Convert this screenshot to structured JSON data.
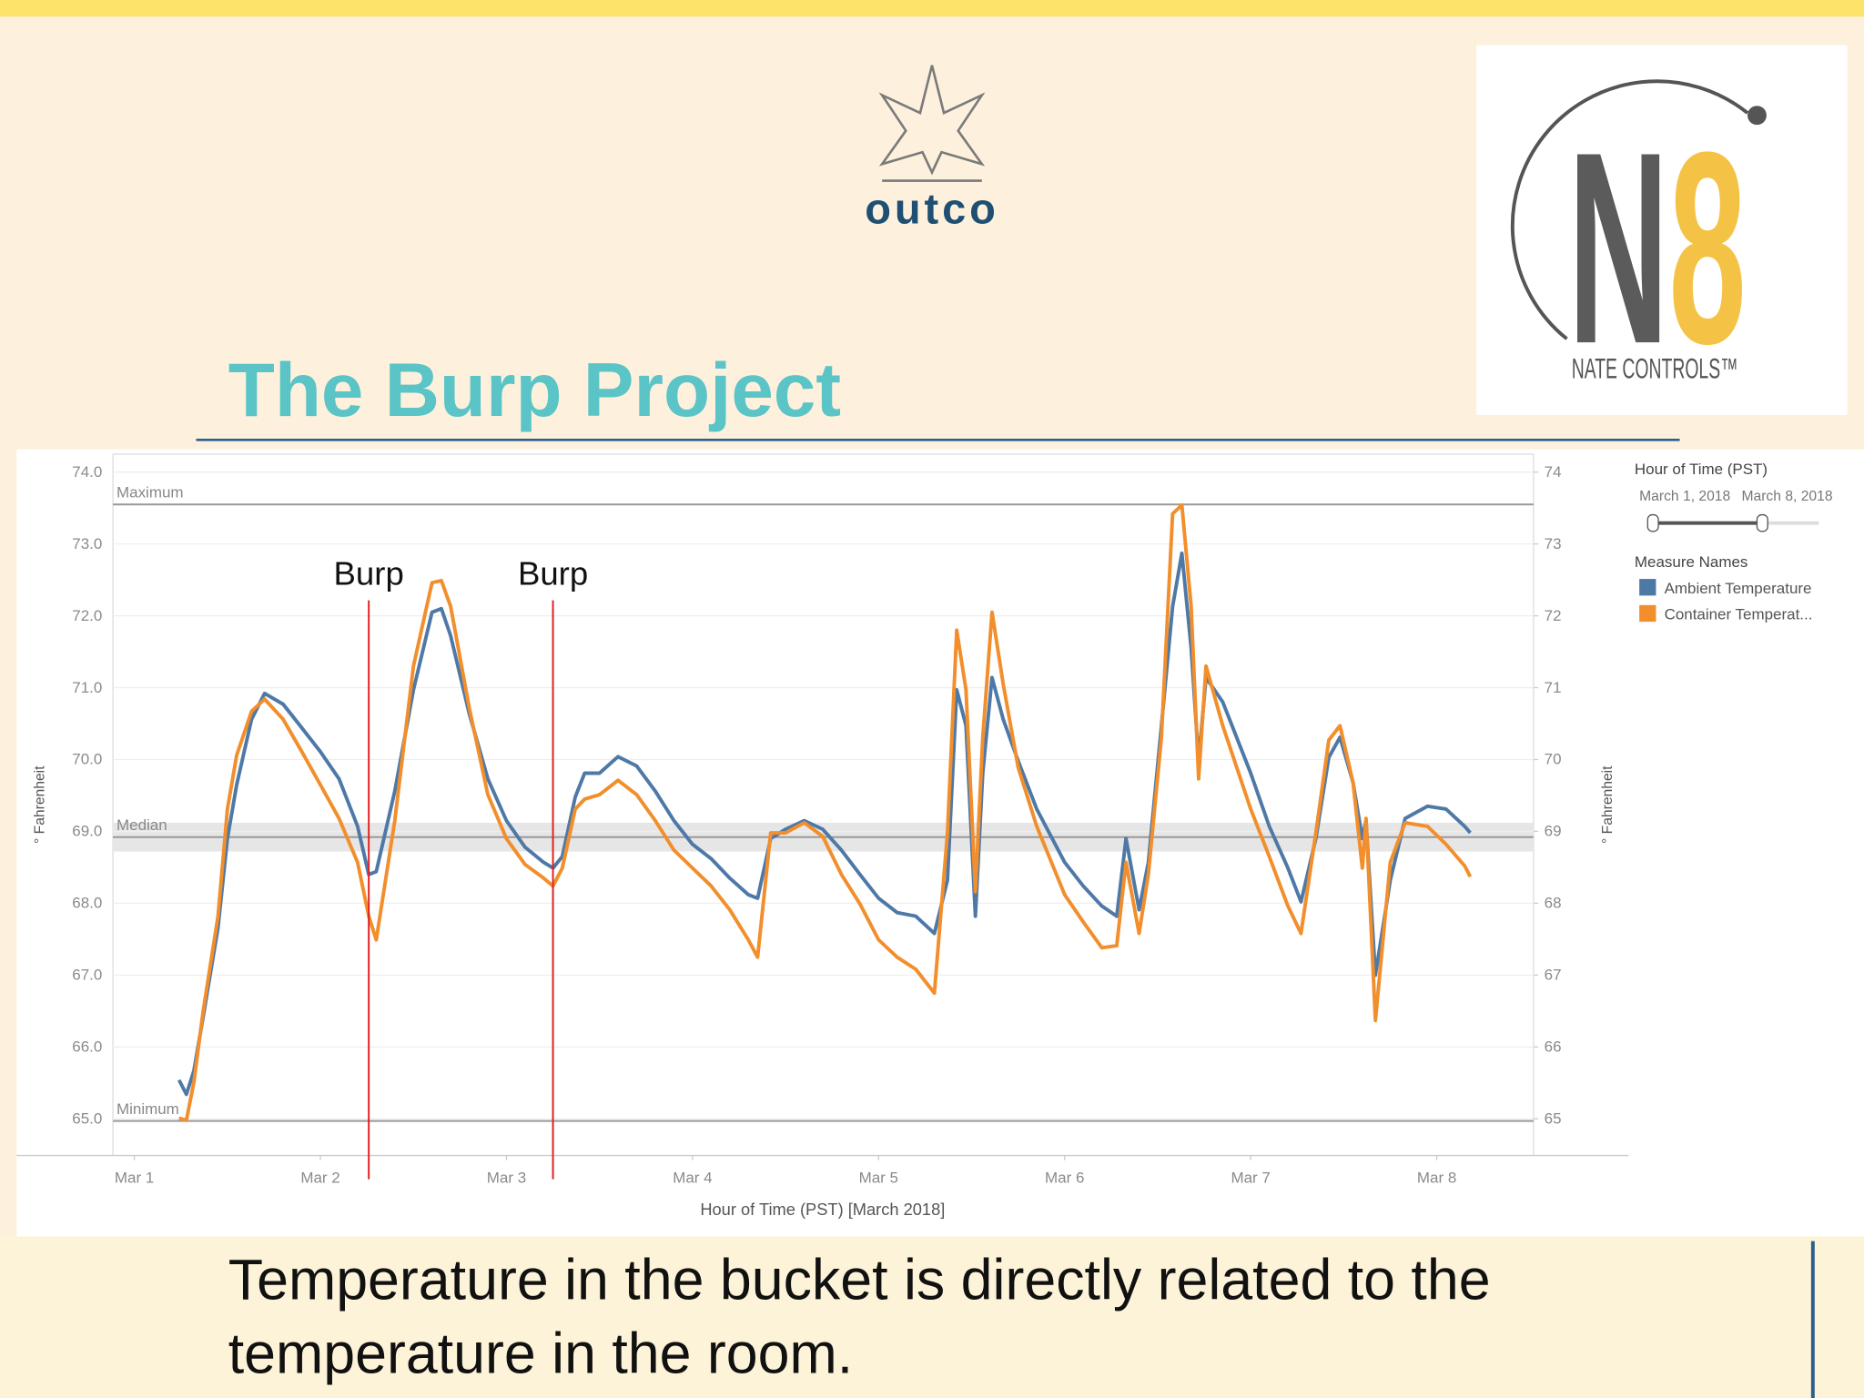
{
  "header": {
    "logo_left": "outco",
    "logo_right": "N8",
    "logo_right_caption": "NATE CONTROLS™",
    "title": "The Burp Project"
  },
  "chart_data": {
    "type": "line",
    "x": [
      0.24,
      0.28,
      0.32,
      0.37,
      0.45,
      0.5,
      0.55,
      0.63,
      0.7,
      0.8,
      0.9,
      1.0,
      1.1,
      1.2,
      1.26,
      1.3,
      1.4,
      1.5,
      1.6,
      1.65,
      1.7,
      1.8,
      1.9,
      2.0,
      2.1,
      2.2,
      2.25,
      2.3,
      2.37,
      2.42,
      2.5,
      2.6,
      2.7,
      2.8,
      2.9,
      3.0,
      3.1,
      3.2,
      3.3,
      3.35,
      3.42,
      3.5,
      3.6,
      3.7,
      3.8,
      3.9,
      4.0,
      4.1,
      4.2,
      4.3,
      4.37,
      4.42,
      4.47,
      4.52,
      4.56,
      4.61,
      4.67,
      4.75,
      4.85,
      5.0,
      5.1,
      5.2,
      5.28,
      5.33,
      5.4,
      5.45,
      5.52,
      5.58,
      5.63,
      5.68,
      5.72,
      5.76,
      5.85,
      6.0,
      6.1,
      6.2,
      6.27,
      6.35,
      6.42,
      6.48,
      6.55,
      6.6,
      6.62,
      6.67,
      6.75,
      6.83,
      6.95,
      7.05,
      7.15,
      7.18
    ],
    "series": [
      {
        "name": "Ambient Temperature",
        "color": "#4e79a7",
        "values": [
          65.54,
          65.34,
          65.67,
          66.42,
          67.66,
          68.9,
          69.65,
          70.56,
          70.92,
          70.77,
          70.44,
          70.11,
          69.73,
          69.07,
          68.4,
          68.44,
          69.56,
          70.97,
          72.05,
          72.1,
          71.72,
          70.64,
          69.73,
          69.15,
          68.78,
          68.57,
          68.49,
          68.65,
          69.48,
          69.81,
          69.81,
          70.04,
          69.91,
          69.56,
          69.15,
          68.82,
          68.62,
          68.35,
          68.12,
          68.07,
          68.9,
          69.03,
          69.15,
          69.03,
          68.74,
          68.4,
          68.07,
          67.87,
          67.82,
          67.58,
          68.32,
          70.97,
          70.47,
          67.82,
          69.81,
          71.14,
          70.56,
          69.98,
          69.31,
          68.57,
          68.24,
          67.96,
          67.82,
          68.9,
          67.91,
          68.57,
          70.47,
          72.13,
          72.87,
          71.55,
          69.98,
          71.14,
          70.8,
          69.81,
          69.07,
          68.49,
          68.02,
          68.9,
          70.03,
          70.31,
          69.68,
          68.9,
          69.15,
          67.0,
          68.32,
          69.18,
          69.35,
          69.31,
          69.07,
          68.98
        ]
      },
      {
        "name": "Container Temperat...",
        "color": "#f28e2b",
        "values": [
          65.01,
          64.98,
          65.51,
          66.5,
          67.82,
          69.31,
          70.06,
          70.67,
          70.84,
          70.56,
          70.11,
          69.65,
          69.18,
          68.57,
          67.82,
          67.49,
          69.15,
          71.3,
          72.46,
          72.49,
          72.13,
          70.72,
          69.51,
          68.9,
          68.54,
          68.35,
          68.24,
          68.49,
          69.31,
          69.45,
          69.51,
          69.71,
          69.51,
          69.15,
          68.74,
          68.49,
          68.24,
          67.91,
          67.49,
          67.25,
          68.98,
          68.98,
          69.12,
          68.93,
          68.4,
          67.99,
          67.49,
          67.25,
          67.08,
          66.75,
          68.98,
          71.8,
          70.97,
          68.16,
          70.31,
          72.05,
          71.05,
          69.89,
          69.07,
          68.12,
          67.74,
          67.38,
          67.41,
          68.57,
          67.58,
          68.4,
          70.31,
          73.42,
          73.54,
          72.13,
          69.73,
          71.3,
          70.47,
          69.31,
          68.65,
          67.96,
          67.58,
          68.98,
          70.27,
          70.47,
          69.68,
          68.49,
          69.18,
          66.37,
          68.57,
          69.12,
          69.07,
          68.82,
          68.52,
          68.37
        ]
      }
    ],
    "xlim": [
      -0.115,
      7.52
    ],
    "xticks": [
      {
        "value": 0,
        "label": "Mar 1"
      },
      {
        "value": 1,
        "label": "Mar 2"
      },
      {
        "value": 2,
        "label": "Mar 3"
      },
      {
        "value": 3,
        "label": "Mar 4"
      },
      {
        "value": 4,
        "label": "Mar 5"
      },
      {
        "value": 5,
        "label": "Mar 6"
      },
      {
        "value": 6,
        "label": "Mar 7"
      },
      {
        "value": 7,
        "label": "Mar 8"
      }
    ],
    "xlabel": "Hour of Time (PST) [March 2018]",
    "ylabel": "° Fahrenheit",
    "ylim": [
      64.49,
      74.25
    ],
    "yticks": [
      {
        "value": 65,
        "label": "65.0"
      },
      {
        "value": 66,
        "label": "66.0"
      },
      {
        "value": 67,
        "label": "67.0"
      },
      {
        "value": 68,
        "label": "68.0"
      },
      {
        "value": 69,
        "label": "69.0"
      },
      {
        "value": 70,
        "label": "70.0"
      },
      {
        "value": 71,
        "label": "71.0"
      },
      {
        "value": 72,
        "label": "72.0"
      },
      {
        "value": 73,
        "label": "73.0"
      },
      {
        "value": 74,
        "label": "74.0"
      }
    ],
    "y2label": "° Fahrenheit",
    "y2lim": [
      64.49,
      74.25
    ],
    "y2ticks": [
      65,
      66,
      67,
      68,
      69,
      70,
      71,
      72,
      73,
      74
    ],
    "grid": true,
    "reference_lines": [
      {
        "label": "Maximum",
        "value": 73.55
      },
      {
        "label": "Median",
        "value": 68.92,
        "band": [
          68.72,
          69.12
        ]
      },
      {
        "label": "Minimum",
        "value": 64.97
      }
    ],
    "annotations": [
      {
        "text": "Burp",
        "x": 1.26
      },
      {
        "text": "Burp",
        "x": 2.25
      }
    ],
    "filter": {
      "title": "Hour of Time (PST)",
      "range": [
        "March 1, 2018",
        "March 8, 2018"
      ]
    },
    "legend_title": "Measure Names",
    "legend_position": "right"
  },
  "caption": [
    "Temperature in the bucket is directly related to the",
    "temperature in the room."
  ]
}
